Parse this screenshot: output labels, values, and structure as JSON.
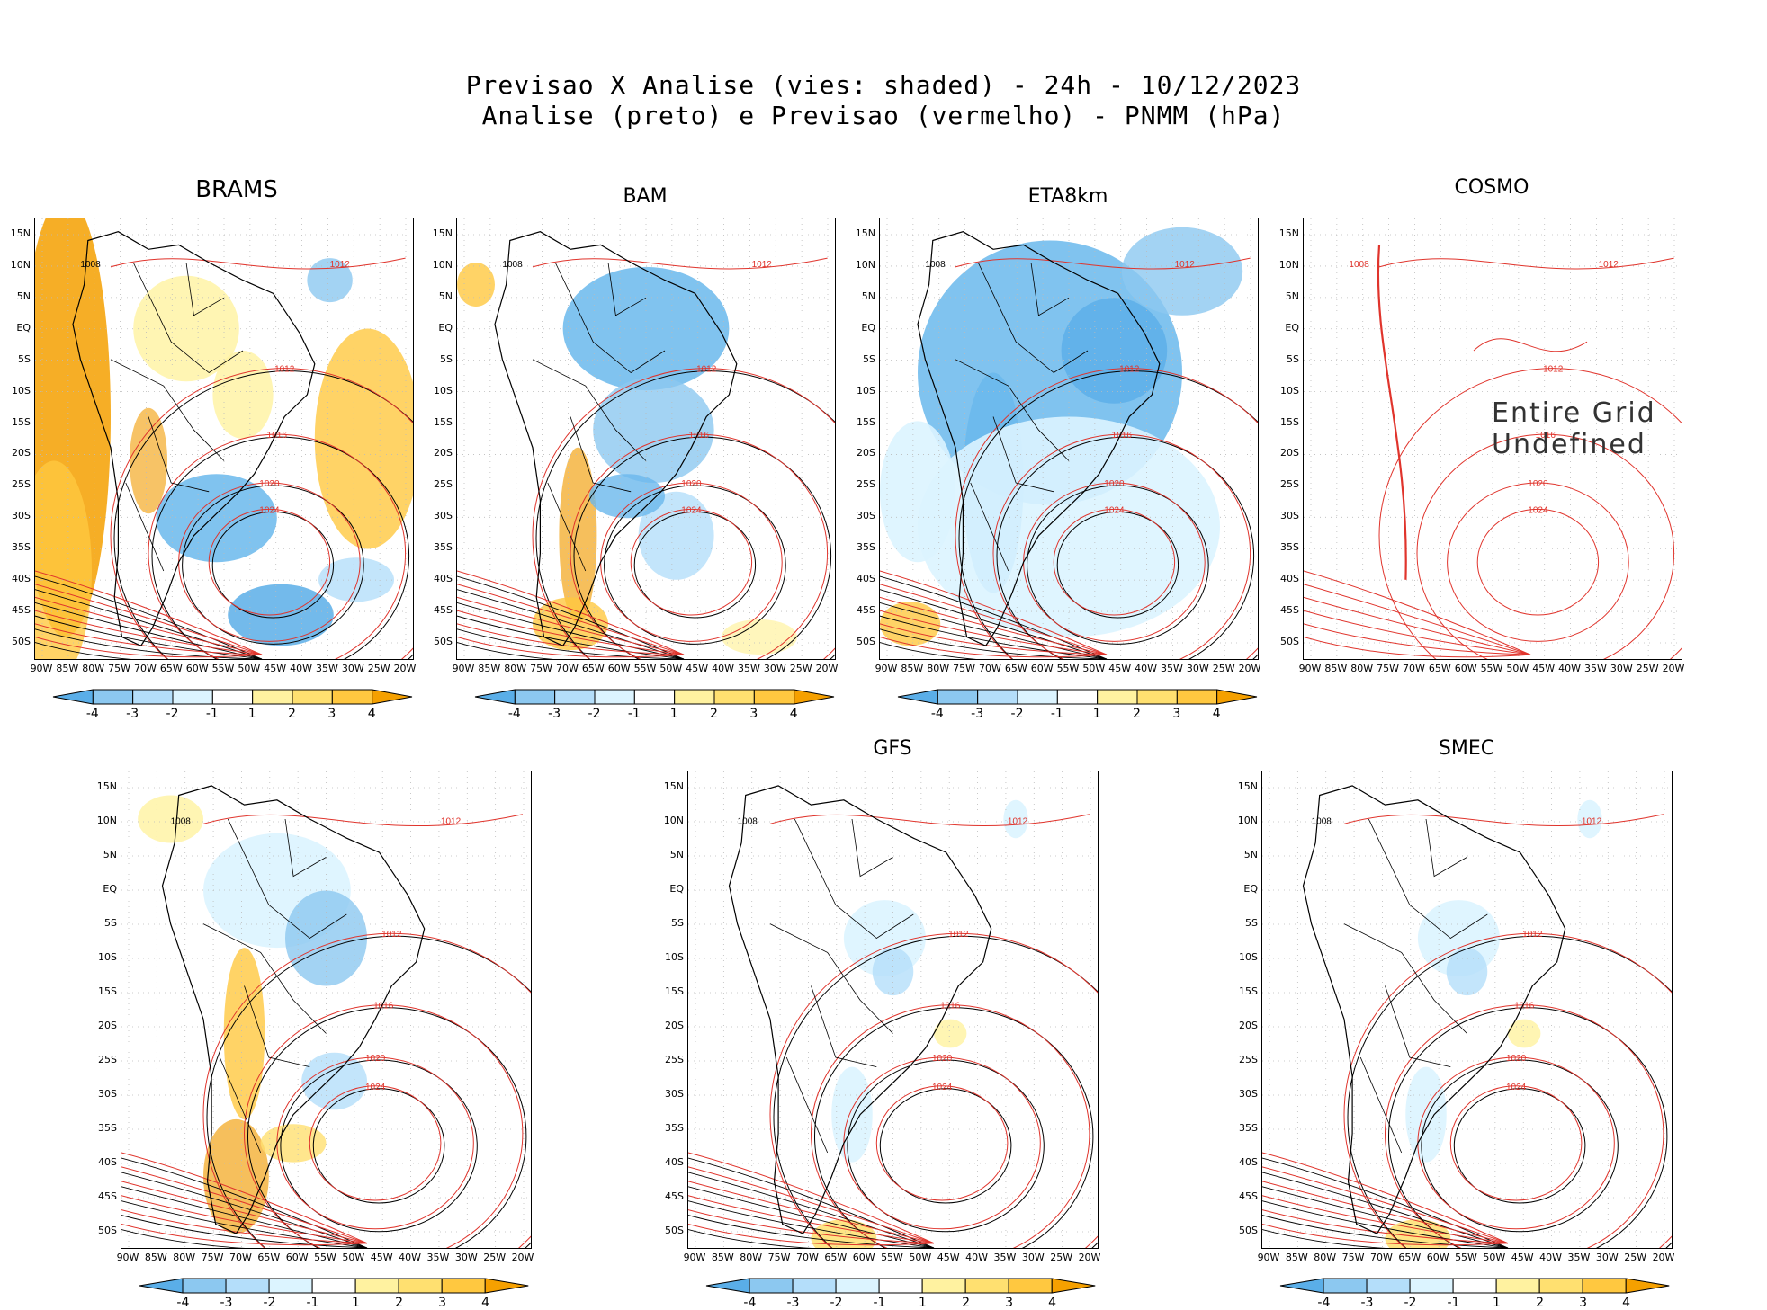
{
  "header": {
    "line1": "Previsao X Analise (vies: shaded) - 24h - 10/12/2023",
    "line2": "Analise (preto) e Previsao (vermelho) - PNMM (hPa)"
  },
  "axes": {
    "lat_labels": [
      "15N",
      "10N",
      "5N",
      "EQ",
      "5S",
      "10S",
      "15S",
      "20S",
      "25S",
      "30S",
      "35S",
      "40S",
      "45S",
      "50S"
    ],
    "lon_labels": [
      "90W",
      "85W",
      "80W",
      "75W",
      "70W",
      "65W",
      "60W",
      "55W",
      "50W",
      "45W",
      "40W",
      "35W",
      "30W",
      "25W",
      "20W"
    ]
  },
  "colorbar": {
    "labels": [
      "-4",
      "-3",
      "-2",
      "-1",
      "1",
      "2",
      "3",
      "4"
    ],
    "colors": [
      "#5aaee8",
      "#8cc8f0",
      "#b4defa",
      "#dcf4ff",
      "#ffffff",
      "#fff2a0",
      "#ffe070",
      "#ffc840",
      "#f5a000"
    ]
  },
  "colors": {
    "analysis_line": "#000000",
    "forecast_line": "#e0342c",
    "positive_bias": "#f5b440",
    "negative_bias": "#6ab8ec"
  },
  "panels": [
    {
      "id": "brams",
      "title": "BRAMS",
      "bias": "mixed-positive",
      "isobars": [
        "1008",
        "1012",
        "1016",
        "1020",
        "1024"
      ]
    },
    {
      "id": "bam",
      "title": "BAM",
      "bias": "negative",
      "isobars": [
        "1008",
        "1012",
        "1016",
        "1020",
        "1024"
      ]
    },
    {
      "id": "eta8km",
      "title": "ETA8km",
      "bias": "strong-negative",
      "isobars": [
        "1008",
        "1012",
        "1016",
        "1020",
        "1024"
      ]
    },
    {
      "id": "cosmo",
      "title": "COSMO",
      "bias": "undefined",
      "isobars": [
        "1008",
        "1012",
        "1016",
        "1020",
        "1024"
      ],
      "note": "Entire Grid Undefined"
    },
    {
      "id": "unnamed",
      "title": "",
      "bias": "mixed",
      "isobars": [
        "1008",
        "1012",
        "1016",
        "1020",
        "1024"
      ]
    },
    {
      "id": "gfs",
      "title": "GFS",
      "bias": "weak",
      "isobars": [
        "1008",
        "1012",
        "1016",
        "1020",
        "1024"
      ]
    },
    {
      "id": "smec",
      "title": "SMEC",
      "bias": "weak",
      "isobars": [
        "1008",
        "1012",
        "1016",
        "1020",
        "1024"
      ]
    }
  ]
}
